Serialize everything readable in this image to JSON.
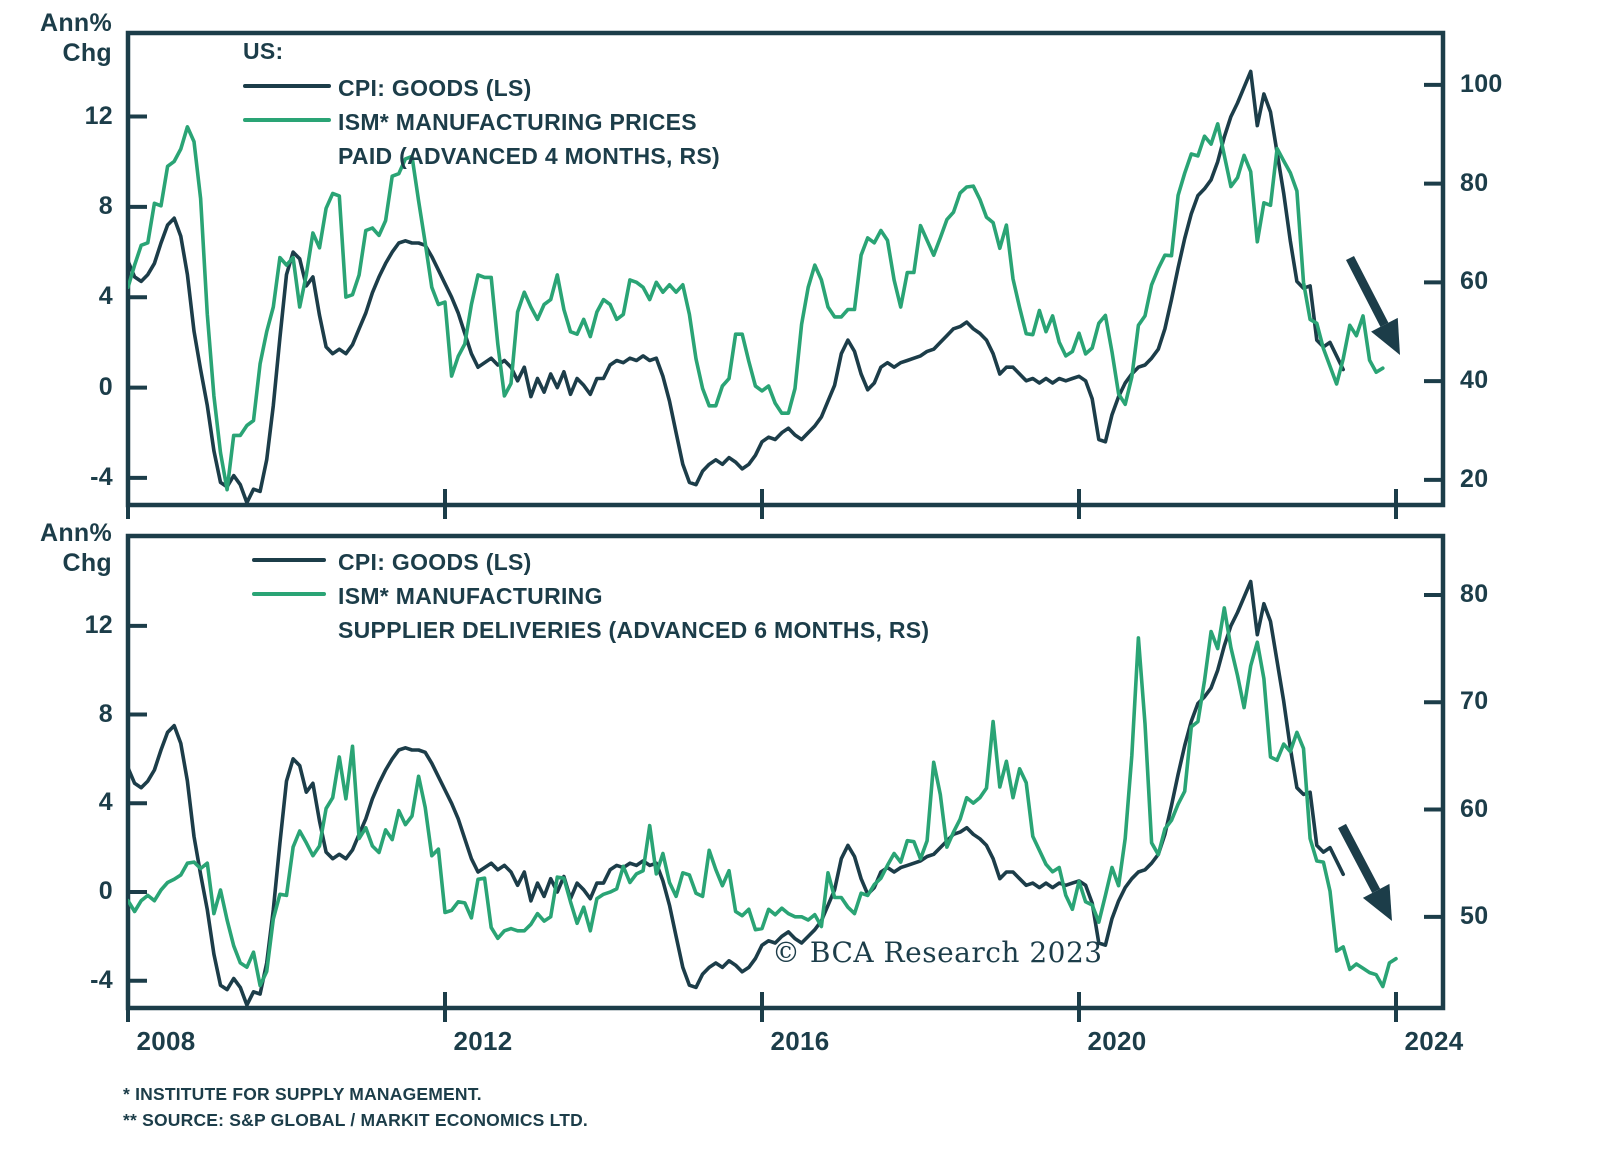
{
  "page": {
    "background": "#ffffff"
  },
  "colors": {
    "navy": "#1c3d49",
    "green": "#2aa475"
  },
  "top_panel": {
    "y_axis_label_line1": "Ann%",
    "y_axis_label_line2": "Chg",
    "legend_title": "US:",
    "legend": [
      {
        "label_lines": [
          "CPI: GOODS (LS)"
        ],
        "color_key": "navy"
      },
      {
        "label_lines": [
          "ISM* MANUFACTURING PRICES",
          "PAID (ADVANCED 4 MONTHS, RS)"
        ],
        "color_key": "green"
      }
    ],
    "left_ticks": [
      "12",
      "8",
      "4",
      "0",
      "-4"
    ],
    "right_ticks": [
      "100",
      "80",
      "60",
      "40",
      "20"
    ]
  },
  "bottom_panel": {
    "y_axis_label_line1": "Ann%",
    "y_axis_label_line2": "Chg",
    "legend": [
      {
        "label_lines": [
          "CPI: GOODS (LS)"
        ],
        "color_key": "navy"
      },
      {
        "label_lines": [
          "ISM* MANUFACTURING",
          "SUPPLIER DELIVERIES (ADVANCED 6 MONTHS, RS)"
        ],
        "color_key": "green"
      }
    ],
    "left_ticks": [
      "12",
      "8",
      "4",
      "0",
      "-4"
    ],
    "right_ticks": [
      "80",
      "70",
      "60",
      "50"
    ]
  },
  "x_axis": {
    "tick_labels": [
      "2008",
      "2012",
      "2016",
      "2020",
      "2024"
    ],
    "tick_years": [
      2008,
      2012,
      2016,
      2020,
      2024
    ]
  },
  "footnotes": [
    "*  INSTITUTE FOR SUPPLY MANAGEMENT.",
    "** SOURCE: S&P GLOBAL / MARKIT ECONOMICS LTD."
  ],
  "copyright": "© BCA Research 2023",
  "chart_data": {
    "type": "line",
    "x_step_years": 0.0833333,
    "panels": [
      {
        "name": "top",
        "left_axis": {
          "label": "Ann% Chg",
          "ticks": [
            12,
            8,
            4,
            0,
            -4
          ],
          "range": [
            -5.2,
            15.7
          ]
        },
        "right_axis": {
          "ticks": [
            100,
            80,
            60,
            40,
            20
          ],
          "range": [
            14.9,
            110.5
          ]
        },
        "series": [
          {
            "name": "CPI: GOODS (LS)",
            "axis": "left",
            "color_key": "navy",
            "values_ref": "cpi_goods_yoy",
            "x_start": 2008.0
          },
          {
            "name": "ISM MANUFACTURING PRICES PAID (ADVANCED 4 MONTHS, RS)",
            "axis": "right",
            "color_key": "green",
            "values_ref": "ism_prices_paid_adv4",
            "x_start": 2008.0
          }
        ]
      },
      {
        "name": "bottom",
        "left_axis": {
          "label": "Ann% Chg",
          "ticks": [
            12,
            8,
            4,
            0,
            -4
          ],
          "range": [
            -5.23,
            16.05
          ]
        },
        "right_axis": {
          "ticks": [
            80,
            70,
            60,
            50
          ],
          "range": [
            41.5,
            85.5
          ]
        },
        "series": [
          {
            "name": "CPI: GOODS (LS)",
            "axis": "left",
            "color_key": "navy",
            "values_ref": "cpi_goods_yoy",
            "x_start": 2008.0
          },
          {
            "name": "ISM MANUFACTURING SUPPLIER DELIVERIES (ADVANCED 6 MONTHS, RS)",
            "axis": "right",
            "color_key": "green",
            "values_ref": "ism_supplier_deliveries_adv6",
            "x_start": 2008.0
          }
        ]
      }
    ],
    "series_values": {
      "cpi_goods_yoy": [
        5.6,
        4.9,
        4.7,
        5.0,
        5.5,
        6.4,
        7.2,
        7.5,
        6.7,
        5.0,
        2.5,
        0.8,
        -0.8,
        -2.8,
        -4.2,
        -4.4,
        -3.9,
        -4.3,
        -5.1,
        -4.5,
        -4.6,
        -3.2,
        -0.8,
        2.2,
        5.0,
        6.0,
        5.7,
        4.5,
        4.9,
        3.2,
        1.8,
        1.5,
        1.7,
        1.5,
        1.9,
        2.6,
        3.3,
        4.2,
        4.9,
        5.5,
        6.0,
        6.4,
        6.5,
        6.4,
        6.4,
        6.3,
        5.8,
        5.2,
        4.6,
        4.0,
        3.3,
        2.4,
        1.5,
        0.9,
        1.1,
        1.3,
        1.0,
        1.2,
        0.9,
        0.3,
        0.9,
        -0.4,
        0.4,
        -0.2,
        0.6,
        0.0,
        0.7,
        -0.3,
        0.4,
        0.1,
        -0.3,
        0.4,
        0.4,
        1.0,
        1.2,
        1.1,
        1.3,
        1.2,
        1.4,
        1.2,
        1.3,
        0.5,
        -0.6,
        -2.0,
        -3.4,
        -4.2,
        -4.3,
        -3.7,
        -3.4,
        -3.2,
        -3.4,
        -3.1,
        -3.3,
        -3.6,
        -3.4,
        -3.0,
        -2.4,
        -2.2,
        -2.3,
        -2.0,
        -1.8,
        -2.1,
        -2.3,
        -2.0,
        -1.7,
        -1.3,
        -0.6,
        0.1,
        1.5,
        2.1,
        1.6,
        0.6,
        -0.1,
        0.2,
        0.9,
        1.1,
        0.9,
        1.1,
        1.2,
        1.3,
        1.4,
        1.6,
        1.7,
        2.0,
        2.3,
        2.6,
        2.7,
        2.9,
        2.6,
        2.4,
        2.1,
        1.5,
        0.6,
        0.9,
        0.9,
        0.6,
        0.3,
        0.4,
        0.2,
        0.4,
        0.2,
        0.4,
        0.3,
        0.4,
        0.5,
        0.3,
        -0.5,
        -2.3,
        -2.4,
        -1.2,
        -0.4,
        0.2,
        0.6,
        0.9,
        1.0,
        1.3,
        1.7,
        2.6,
        3.9,
        5.3,
        6.6,
        7.7,
        8.5,
        8.8,
        9.2,
        10.0,
        11.1,
        12.0,
        12.6,
        13.3,
        14.0,
        11.6,
        13.0,
        12.2,
        10.4,
        8.6,
        6.5,
        4.7,
        4.4,
        4.5,
        2.1,
        1.8,
        2.0,
        1.4,
        0.8
      ],
      "ism_prices_paid_adv4": [
        59,
        63.5,
        67.5,
        68,
        76,
        75.5,
        83.5,
        84.5,
        87,
        91.5,
        88.5,
        77,
        53.5,
        37,
        25.5,
        18,
        29,
        29,
        31,
        32,
        43.5,
        50,
        55,
        65,
        63.5,
        65,
        55,
        61.5,
        70,
        67,
        75,
        78,
        77.5,
        57,
        57.5,
        61.5,
        70.5,
        71,
        69.5,
        72.5,
        81.5,
        82,
        85,
        85.5,
        76.5,
        68,
        59,
        55.5,
        56,
        41,
        45,
        47.5,
        55.5,
        61.5,
        61,
        61,
        47.5,
        37,
        39.5,
        54,
        58,
        55,
        52.5,
        55.5,
        56.5,
        61.5,
        54.5,
        50,
        49.5,
        52.5,
        49,
        54,
        56.5,
        55.5,
        52.5,
        53.5,
        60.5,
        60,
        59,
        56.5,
        60,
        58,
        59.5,
        58,
        59.5,
        53.5,
        44.5,
        38.5,
        35,
        35,
        39,
        40.5,
        49.5,
        49.5,
        44,
        39,
        38,
        39,
        35.5,
        33.5,
        33.5,
        38.5,
        51.5,
        59,
        63.5,
        60.5,
        55,
        53,
        53,
        54.5,
        54.5,
        65.5,
        69,
        68,
        70.5,
        68.5,
        60.5,
        55,
        62,
        62,
        71.5,
        68.5,
        65.5,
        69,
        72.7,
        74.2,
        78.1,
        79.3,
        79.5,
        76.8,
        73.2,
        72.1,
        66.9,
        71.6,
        60.7,
        54.9,
        49.6,
        49.4,
        54.3,
        50,
        53.2,
        47.9,
        45.1,
        46,
        49.7,
        45.5,
        46.7,
        51.7,
        53.3,
        45.9,
        37.4,
        35.3,
        40.8,
        51.3,
        53.2,
        59.5,
        62.8,
        65.5,
        65.4,
        77.6,
        82.1,
        86,
        85.6,
        89.6,
        88,
        92.1,
        85.7,
        79.4,
        81.2,
        85.7,
        82.4,
        68.2,
        76.1,
        75.6,
        87.1,
        84.6,
        82.2,
        78.5,
        60,
        52.5,
        51.7,
        46.6,
        43,
        39.4,
        44.5,
        51.3,
        49.2,
        53.2,
        44.2,
        41.8,
        42.6
      ],
      "ism_supplier_deliveries_adv6": [
        51.5,
        50.5,
        51.5,
        52,
        51.5,
        52.5,
        53.2,
        53.5,
        53.9,
        55.0,
        55.1,
        54.5,
        55.0,
        50.3,
        52.5,
        49.7,
        47.3,
        45.7,
        45.3,
        46.7,
        43.6,
        44.9,
        49.8,
        52.1,
        52.0,
        56.5,
        58.0,
        56.9,
        55.7,
        56.6,
        60.1,
        61.1,
        64.9,
        61.0,
        65.9,
        57.3,
        58.3,
        56.6,
        56.0,
        58.1,
        57.2,
        59.9,
        58.6,
        59.4,
        63.1,
        60.2,
        55.7,
        56.3,
        50.4,
        50.6,
        51.4,
        51.3,
        49.9,
        53.5,
        53.6,
        49.0,
        48.0,
        48.7,
        48.9,
        48.7,
        48.7,
        49.3,
        50.3,
        49.6,
        50.0,
        53.7,
        53.6,
        51.4,
        49.4,
        50.9,
        48.7,
        51.7,
        52.1,
        52.3,
        52.6,
        54.7,
        53.2,
        54.0,
        54.3,
        58.5,
        54.0,
        55.9,
        53.2,
        51.9,
        54.1,
        53.9,
        52.2,
        51.9,
        56.2,
        54.4,
        52.9,
        54.3,
        50.5,
        50.1,
        50.7,
        48.8,
        48.9,
        50.7,
        50.2,
        50.8,
        50.3,
        50.0,
        50.0,
        49.7,
        50.2,
        49.1,
        54.1,
        51.8,
        51.8,
        50.9,
        50.3,
        52.2,
        52.0,
        53.0,
        53.6,
        54.8,
        55.9,
        55.1,
        57.1,
        57.0,
        55.4,
        57.1,
        64.4,
        61.4,
        56.5,
        57.9,
        59.1,
        61.1,
        60.6,
        61.1,
        62.0,
        68.2,
        62.1,
        64.5,
        61.1,
        63.8,
        62.5,
        57.5,
        56.2,
        54.9,
        54.2,
        54.6,
        52.0,
        50.7,
        53.3,
        51.4,
        51.1,
        49.5,
        52.0,
        54.6,
        52.9,
        57.3,
        65.0,
        76.0,
        68.0,
        56.9,
        55.8,
        58.2,
        59.0,
        60.5,
        61.7,
        67.7,
        68.2,
        72.0,
        76.6,
        75.0,
        78.8,
        75.1,
        72.5,
        69.5,
        73.4,
        75.6,
        72.2,
        64.9,
        64.6,
        66.1,
        65.4,
        67.2,
        65.7,
        57.3,
        55.2,
        55.1,
        52.4,
        46.8,
        47.2,
        45.1,
        45.6,
        45.2,
        44.8,
        44.6,
        43.5,
        45.7,
        46.1
      ]
    },
    "annotations": [
      {
        "panel": 0,
        "type": "down-right-arrow"
      },
      {
        "panel": 1,
        "type": "down-right-arrow"
      }
    ]
  }
}
